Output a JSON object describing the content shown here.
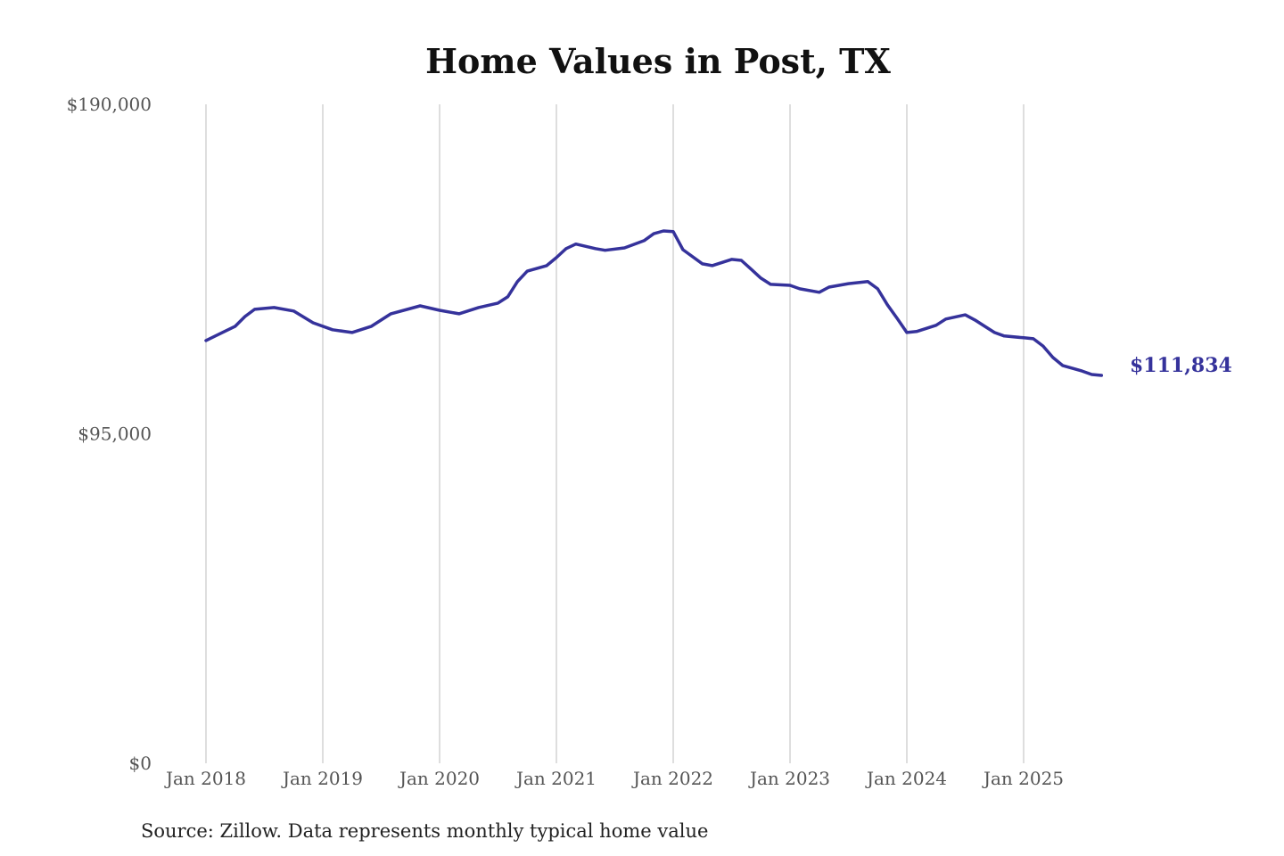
{
  "chart_data": {
    "type": "line",
    "title": "Home Values in Post, TX",
    "source": "Source: Zillow. Data represents monthly typical home value",
    "ylim": [
      0,
      190000
    ],
    "yticks": [
      {
        "value": 0,
        "label": "$0"
      },
      {
        "value": 95000,
        "label": "$95,000"
      },
      {
        "value": 190000,
        "label": "$190,000"
      }
    ],
    "xticks": [
      {
        "value": "2018-01",
        "label": "Jan 2018"
      },
      {
        "value": "2019-01",
        "label": "Jan 2019"
      },
      {
        "value": "2020-01",
        "label": "Jan 2020"
      },
      {
        "value": "2021-01",
        "label": "Jan 2021"
      },
      {
        "value": "2022-01",
        "label": "Jan 2022"
      },
      {
        "value": "2023-01",
        "label": "Jan 2023"
      },
      {
        "value": "2024-01",
        "label": "Jan 2024"
      },
      {
        "value": "2025-01",
        "label": "Jan 2025"
      }
    ],
    "grid": "vertical",
    "line_color": "#35329b",
    "end_label": "$111,834",
    "series": [
      {
        "x": [
          "2018-01",
          "2018-04",
          "2018-05",
          "2018-06",
          "2018-08",
          "2018-10",
          "2018-12",
          "2019-02",
          "2019-04",
          "2019-06",
          "2019-08",
          "2019-11",
          "2020-01",
          "2020-03",
          "2020-05",
          "2020-07",
          "2020-08",
          "2020-09",
          "2020-10",
          "2020-12",
          "2021-01",
          "2021-02",
          "2021-03",
          "2021-05",
          "2021-06",
          "2021-08",
          "2021-10",
          "2021-11",
          "2021-12",
          "2022-01",
          "2022-02",
          "2022-04",
          "2022-05",
          "2022-07",
          "2022-08",
          "2022-09",
          "2022-10",
          "2022-11",
          "2023-01",
          "2023-02",
          "2023-04",
          "2023-05",
          "2023-07",
          "2023-09",
          "2023-10",
          "2023-11",
          "2023-12",
          "2024-01",
          "2024-02",
          "2024-04",
          "2024-05",
          "2024-07",
          "2024-08",
          "2024-09",
          "2024-10",
          "2024-11",
          "2025-01",
          "2025-02",
          "2025-03",
          "2025-04",
          "2025-05",
          "2025-07",
          "2025-08",
          "2025-09"
        ],
        "values": [
          121900,
          126000,
          128800,
          130900,
          131400,
          130400,
          127000,
          125000,
          124200,
          126000,
          129600,
          131900,
          130600,
          129600,
          131400,
          132700,
          134500,
          138900,
          141900,
          143500,
          145800,
          148400,
          149700,
          148400,
          147900,
          148600,
          150700,
          152700,
          153500,
          153300,
          148100,
          144000,
          143500,
          145300,
          145000,
          142500,
          139900,
          138100,
          137800,
          136800,
          135800,
          137300,
          138300,
          138900,
          136800,
          132200,
          128300,
          124200,
          124500,
          126300,
          128100,
          129300,
          127800,
          126000,
          124200,
          123200,
          122700,
          122400,
          120300,
          117000,
          114700,
          113100,
          112100,
          111834
        ]
      }
    ]
  }
}
